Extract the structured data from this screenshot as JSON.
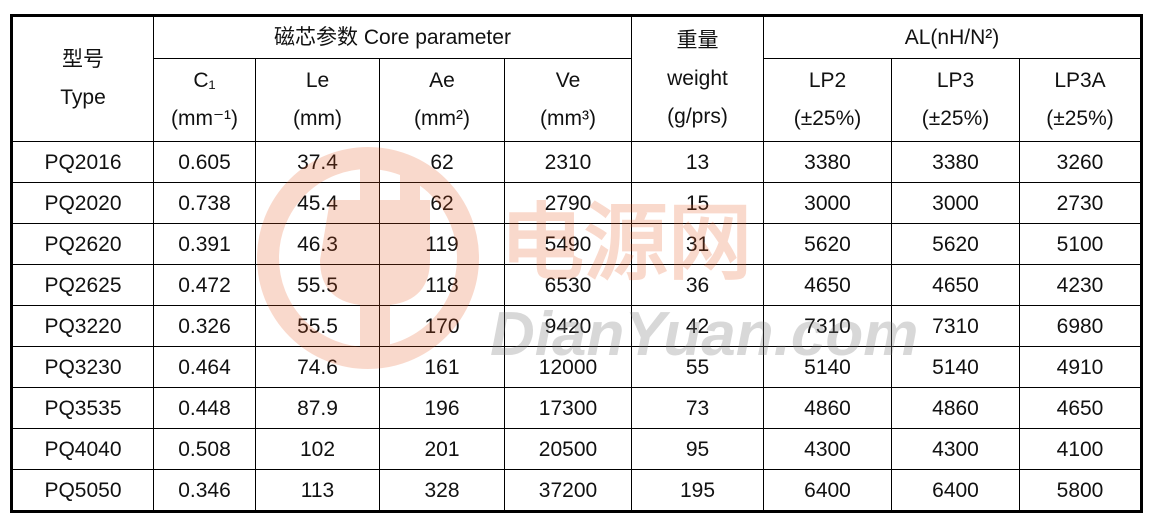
{
  "table": {
    "header": {
      "type_label": [
        "型号",
        "Type"
      ],
      "core_parameter": "磁芯参数  Core parameter",
      "weight_label": [
        "重量",
        "weight",
        "(g/prs)"
      ],
      "al": "AL(nH/N²)",
      "core_columns": [
        [
          "C₁",
          "(mm⁻¹)"
        ],
        [
          "Le",
          "(mm)"
        ],
        [
          "Ae",
          "(mm²)"
        ],
        [
          "Ve",
          "(mm³)"
        ]
      ],
      "al_columns": [
        [
          "LP2",
          "(±25%)"
        ],
        [
          "LP3",
          "(±25%)"
        ],
        [
          "LP3A",
          "(±25%)"
        ]
      ]
    },
    "rows": [
      [
        "PQ2016",
        0.605,
        37.4,
        62,
        2310,
        13,
        3380,
        3380,
        3260
      ],
      [
        "PQ2020",
        0.738,
        45.4,
        62,
        2790,
        15,
        3000,
        3000,
        2730
      ],
      [
        "PQ2620",
        0.391,
        46.3,
        119,
        5490,
        31,
        5620,
        5620,
        5100
      ],
      [
        "PQ2625",
        0.472,
        55.5,
        118,
        6530,
        36,
        4650,
        4650,
        4230
      ],
      [
        "PQ3220",
        0.326,
        55.5,
        170,
        9420,
        42,
        7310,
        7310,
        6980
      ],
      [
        "PQ3230",
        0.464,
        74.6,
        161,
        12000,
        55,
        5140,
        5140,
        4910
      ],
      [
        "PQ3535",
        0.448,
        87.9,
        196,
        17300,
        73,
        4860,
        4860,
        4650
      ],
      [
        "PQ4040",
        0.508,
        102,
        201,
        20500,
        95,
        4300,
        4300,
        4100
      ],
      [
        "PQ5050",
        0.346,
        113,
        328,
        37200,
        195,
        6400,
        6400,
        5800
      ]
    ]
  },
  "watermark": {
    "cn": "电源网",
    "en": "DianYuan.com"
  }
}
